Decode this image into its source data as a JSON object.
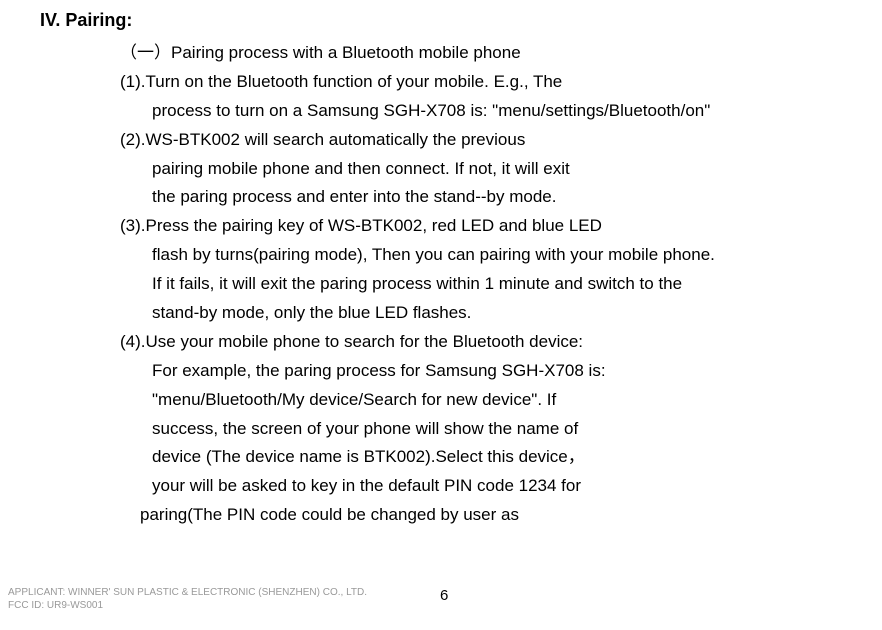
{
  "section": {
    "title": "IV. Pairing:"
  },
  "lines": {
    "l1": "（一）Pairing process with a Bluetooth mobile phone",
    "l2": "(1).Turn on the Bluetooth function of your mobile. E.g., The",
    "l3": "process to turn on a Samsung SGH-X708 is: \"menu/settings/Bluetooth/on\"",
    "l4": "(2).WS-BTK002 will search automatically the previous",
    "l5": "pairing mobile phone and then connect. If not, it will exit",
    "l6": "the paring process and enter into the stand--by mode.",
    "l7": "(3).Press the pairing key of WS-BTK002, red LED and blue LED",
    "l8": "flash by turns(pairing mode), Then you can pairing with your mobile phone.",
    "l9": "If it fails, it will exit the paring process within 1 minute and switch to the",
    "l10": "stand-by mode, only the blue LED flashes.",
    "l11": "(4).Use your mobile phone to search for the Bluetooth device:",
    "l12": "For example, the paring process for Samsung SGH-X708 is:",
    "l13": "\"menu/Bluetooth/My device/Search for new device\". If",
    "l14": "success, the screen of your phone will show the name of",
    "l15": "device (The device name is BTK002).Select this device，",
    "l16": "your will be asked to key in the default PIN code 1234 for",
    "l17": "paring(The PIN code could be changed by user as"
  },
  "footer": {
    "applicant": "APPLICANT: WINNER' SUN PLASTIC & ELECTRONIC (SHENZHEN) CO., LTD.",
    "fccid": "FCC ID: UR9-WS001",
    "pagenum": "6"
  }
}
